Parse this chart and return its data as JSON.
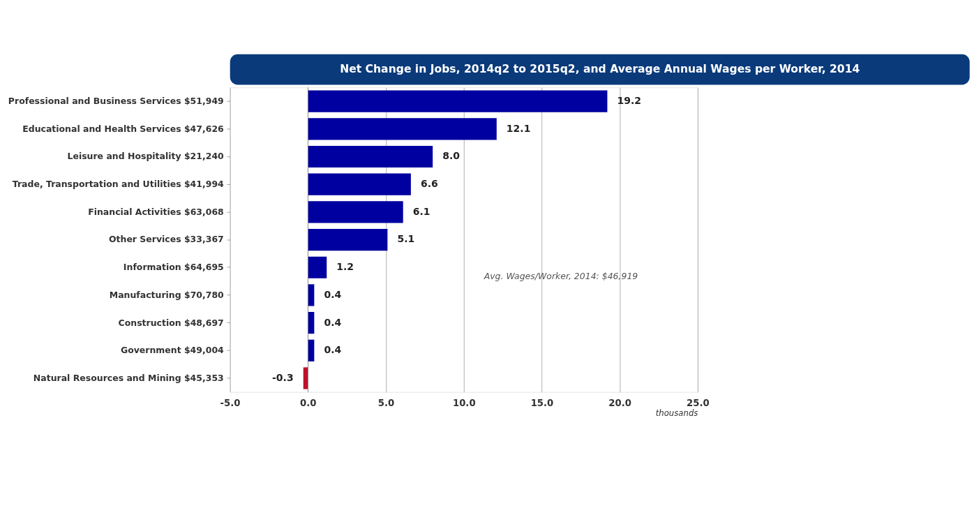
{
  "chart_data": {
    "type": "bar",
    "orientation": "horizontal",
    "title": "Net Change in Jobs, 2014q2 to 2015q2, and Average Annual Wages per Worker, 2014",
    "categories": [
      "Professional and Business Services  $51,949",
      "Educational and Health Services  $47,626",
      "Leisure and Hospitality  $21,240",
      "Trade, Transportation and Utilities  $41,994",
      "Financial Activities  $63,068",
      "Other Services  $33,367",
      "Information  $64,695",
      "Manufacturing  $70,780",
      "Construction  $48,697",
      "Government  $49,004",
      "Natural Resources and Mining  $45,353"
    ],
    "values": [
      19.2,
      12.1,
      8.0,
      6.6,
      6.1,
      5.1,
      1.2,
      0.4,
      0.4,
      0.4,
      -0.3
    ],
    "value_labels": [
      "19.2",
      "12.1",
      "8.0",
      "6.6",
      "6.1",
      "5.1",
      "1.2",
      "0.4",
      "0.4",
      "0.4",
      "-0.3"
    ],
    "colors": [
      "#0000a0",
      "#0000a0",
      "#0000a0",
      "#0000a0",
      "#0000a0",
      "#0000a0",
      "#0000a0",
      "#0000a0",
      "#0000a0",
      "#0000a0",
      "#c0102a"
    ],
    "xlim": [
      -5,
      25
    ],
    "xticks": [
      {
        "value": -5,
        "label": "-5.0"
      },
      {
        "value": 0,
        "label": "0.0"
      },
      {
        "value": 5,
        "label": "5.0"
      },
      {
        "value": 10,
        "label": "10.0"
      },
      {
        "value": 15,
        "label": "15.0"
      },
      {
        "value": 20,
        "label": "20.0"
      },
      {
        "value": 25,
        "label": "25.0"
      }
    ],
    "xlabel": "thousands",
    "annotations": [
      "Avg. Wages/Worker, 2014: $46,919"
    ],
    "grid": "x"
  }
}
